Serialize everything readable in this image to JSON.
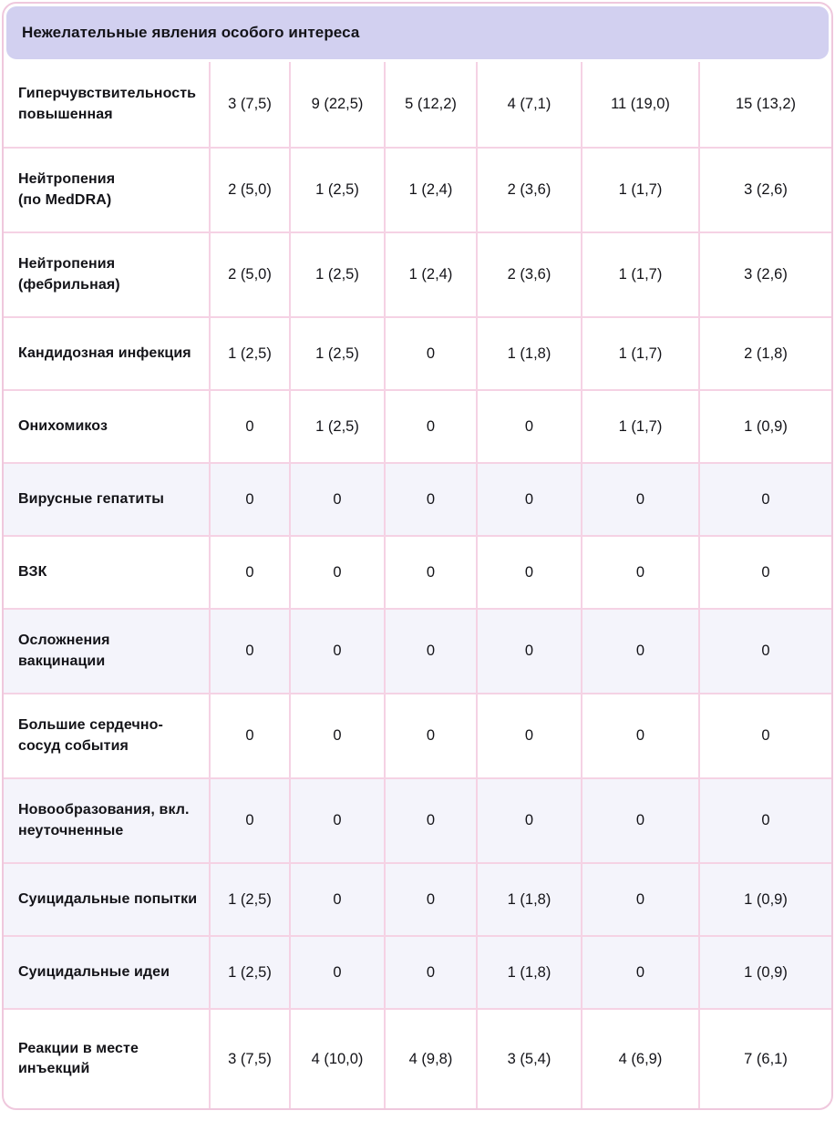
{
  "colors": {
    "header_bg": "#d2d0f0",
    "row_alt_bg": "#f4f4fb",
    "grid_border": "#f5d2e4",
    "card_border": "#efc8dd",
    "text": "#131318",
    "page_bg": "#ffffff",
    "card_bg": "#ffffff"
  },
  "header": {
    "title": "Нежелательные явления особого интереса"
  },
  "table": {
    "rows": [
      {
        "label": "Гиперчувствительность\nповышенная",
        "values": [
          "3 (7,5)",
          "9 (22,5)",
          "5 (12,2)",
          "4 (7,1)",
          "11 (19,0)",
          "15 (13,2)"
        ],
        "highlighted": false
      },
      {
        "label": "Нейтропения\n(по MedDRA)",
        "values": [
          "2 (5,0)",
          "1 (2,5)",
          "1 (2,4)",
          "2 (3,6)",
          "1 (1,7)",
          "3 (2,6)"
        ],
        "highlighted": false
      },
      {
        "label": "Нейтропения\n(фебрильная)",
        "values": [
          "2 (5,0)",
          "1 (2,5)",
          "1 (2,4)",
          "2 (3,6)",
          "1 (1,7)",
          "3 (2,6)"
        ],
        "highlighted": false
      },
      {
        "label": "Кандидозная инфекция",
        "values": [
          "1 (2,5)",
          "1 (2,5)",
          "0",
          "1 (1,8)",
          "1 (1,7)",
          "2 (1,8)"
        ],
        "highlighted": false
      },
      {
        "label": "Онихомикоз",
        "values": [
          "0",
          "1 (2,5)",
          "0",
          "0",
          "1 (1,7)",
          "1 (0,9)"
        ],
        "highlighted": false
      },
      {
        "label": "Вирусные гепатиты",
        "values": [
          "0",
          "0",
          "0",
          "0",
          "0",
          "0"
        ],
        "highlighted": true
      },
      {
        "label": "ВЗК",
        "values": [
          "0",
          "0",
          "0",
          "0",
          "0",
          "0"
        ],
        "highlighted": false
      },
      {
        "label": "Осложнения\nвакцинации",
        "values": [
          "0",
          "0",
          "0",
          "0",
          "0",
          "0"
        ],
        "highlighted": true
      },
      {
        "label": "Большие сердечно-\nсосуд события",
        "values": [
          "0",
          "0",
          "0",
          "0",
          "0",
          "0"
        ],
        "highlighted": false
      },
      {
        "label": "Новообразования, вкл.\nнеуточненные",
        "values": [
          "0",
          "0",
          "0",
          "0",
          "0",
          "0"
        ],
        "highlighted": true
      },
      {
        "label": "Суицидальные попытки",
        "values": [
          "1 (2,5)",
          "0",
          "0",
          "1 (1,8)",
          "0",
          "1 (0,9)"
        ],
        "highlighted": true
      },
      {
        "label": "Суицидальные идеи",
        "values": [
          "1 (2,5)",
          "0",
          "0",
          "1 (1,8)",
          "0",
          "1 (0,9)"
        ],
        "highlighted": true
      },
      {
        "label": "Реакции в месте\nинъекций",
        "values": [
          "3 (7,5)",
          "4 (10,0)",
          "4 (9,8)",
          "3 (5,4)",
          "4 (6,9)",
          "7 (6,1)"
        ],
        "highlighted": false
      }
    ]
  }
}
